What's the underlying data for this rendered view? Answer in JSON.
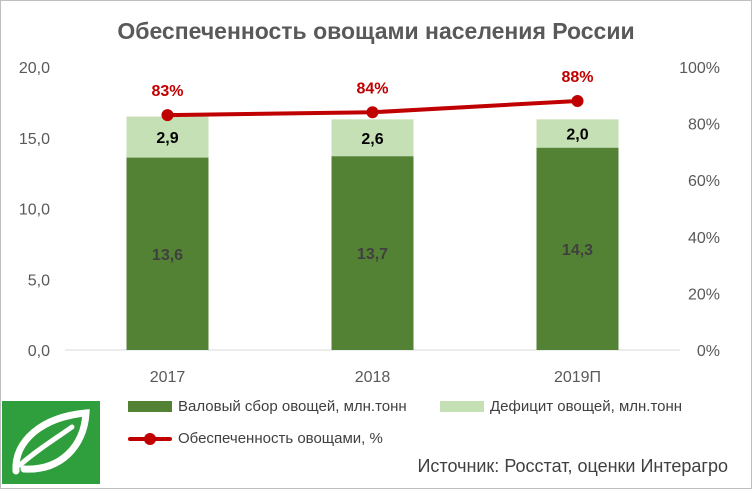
{
  "chart_data": {
    "type": "bar",
    "title": "Обеспеченность овощами населения России",
    "categories": [
      "2017",
      "2018",
      "2019П"
    ],
    "series": [
      {
        "name": "Валовый сбор овощей, млн.тонн",
        "kind": "stacked-bar",
        "axis": "left",
        "values": [
          13.6,
          13.7,
          14.3
        ],
        "labels": [
          "13,6",
          "13,7",
          "14,3"
        ],
        "color": "#548235"
      },
      {
        "name": "Дефицит овощей, млн.тонн",
        "kind": "stacked-bar",
        "axis": "left",
        "values": [
          2.9,
          2.6,
          2.0
        ],
        "labels": [
          "2,9",
          "2,6",
          "2,0"
        ],
        "color": "#c5e0b4"
      },
      {
        "name": "Обеспеченность овощами, %",
        "kind": "line",
        "axis": "right",
        "values": [
          83,
          84,
          88
        ],
        "labels": [
          "83%",
          "84%",
          "88%"
        ],
        "color": "#c00000"
      }
    ],
    "y_left": {
      "min": 0,
      "max": 20,
      "ticks": [
        "0,0",
        "5,0",
        "10,0",
        "15,0",
        "20,0"
      ]
    },
    "y_right": {
      "min": 0,
      "max": 100,
      "ticks": [
        "0%",
        "20%",
        "40%",
        "60%",
        "80%",
        "100%"
      ]
    },
    "grid": false,
    "legend_position": "bottom"
  },
  "source": "Источник: Росстат, оценки Интерагро",
  "logo": {
    "icon": "leaf-logo-icon",
    "color": "#2f9e3c"
  }
}
